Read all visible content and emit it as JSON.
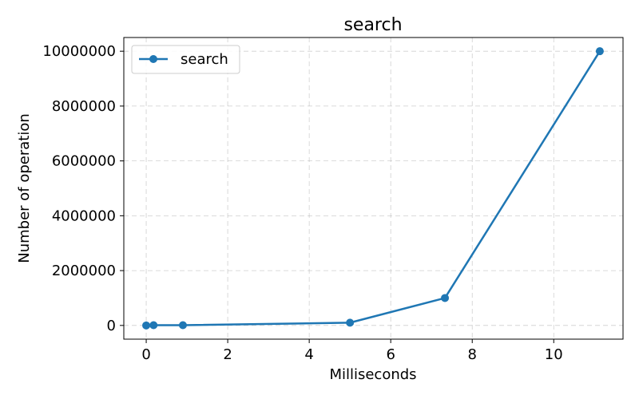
{
  "chart_data": {
    "type": "line",
    "title": "search",
    "xlabel": "Milliseconds",
    "ylabel": "Number of operation",
    "xlim": [
      -0.55,
      11.7
    ],
    "ylim": [
      -500000,
      10500000
    ],
    "xticks": [
      0,
      2,
      4,
      6,
      8,
      10
    ],
    "yticks": [
      0,
      2000000,
      4000000,
      6000000,
      8000000,
      10000000
    ],
    "grid": true,
    "legend_position": "upper-left",
    "series": [
      {
        "name": "search",
        "color": "#1f77b4",
        "marker": "circle",
        "x": [
          0.0,
          0.18,
          0.9,
          5.0,
          7.33,
          11.13
        ],
        "y": [
          10,
          10000,
          10000,
          100000,
          1000000,
          10000000
        ]
      }
    ]
  }
}
